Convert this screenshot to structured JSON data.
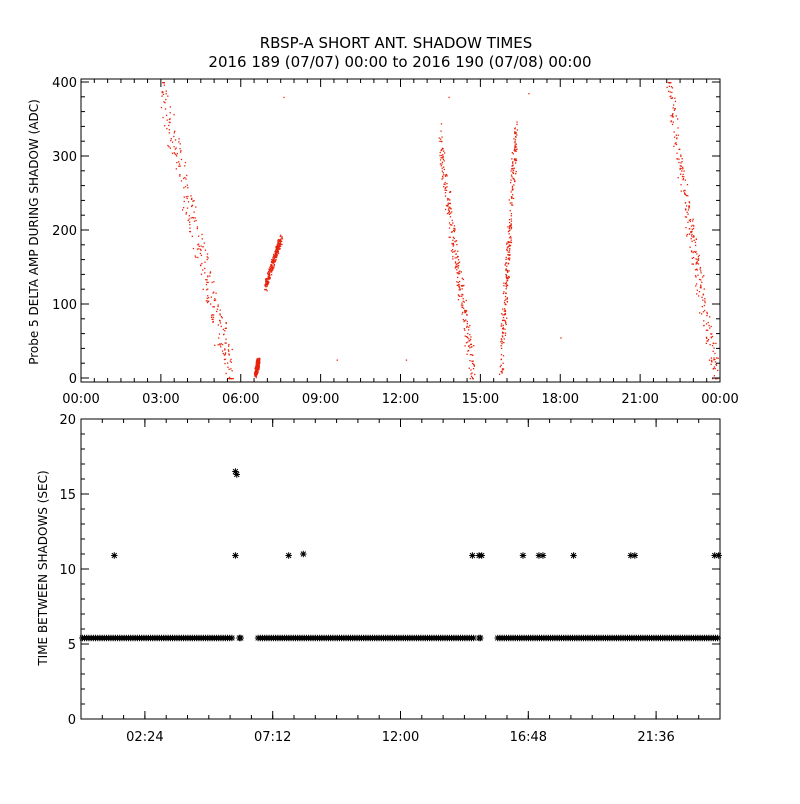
{
  "title": "RBSP-A SHORT ANT. SHADOW TIMES",
  "subtitle": "2016 189 (07/07) 00:00 to 2016 190 (07/08) 00:00",
  "colors": {
    "series_top": "#e8220a",
    "series_bottom": "#000000",
    "axes": "#000000"
  },
  "chart_data": [
    {
      "type": "scatter",
      "ylabel": "Probe 5 DELTA AMP DURING SHADOW (ADC)",
      "xlabel": "",
      "xlim_hours": [
        0,
        24
      ],
      "ylim": [
        0,
        400
      ],
      "x_tick_labels": [
        "00:00",
        "03:00",
        "06:00",
        "09:00",
        "12:00",
        "15:00",
        "18:00",
        "21:00",
        "00:00"
      ],
      "y_tick_labels": [
        "0",
        "100",
        "200",
        "300",
        "400"
      ],
      "grid": false,
      "marker": "dot",
      "clusters": [
        {
          "x_start": 3.0,
          "x_end": 5.7,
          "y_start": 400,
          "y_end": 2
        },
        {
          "x_start": 6.55,
          "x_end": 6.65,
          "y_start": 5,
          "y_end": 25
        },
        {
          "x_start": 6.9,
          "x_end": 7.5,
          "y_start": 120,
          "y_end": 190
        },
        {
          "x_start": 13.45,
          "x_end": 14.75,
          "y_start": 330,
          "y_end": 2
        },
        {
          "x_start": 15.75,
          "x_end": 16.35,
          "y_start": 5,
          "y_end": 340
        },
        {
          "x_start": 22.05,
          "x_end": 23.85,
          "y_start": 400,
          "y_end": 2
        }
      ],
      "isolated_points": [
        {
          "x": 7.6,
          "y": 380
        },
        {
          "x": 9.6,
          "y": 25
        },
        {
          "x": 12.2,
          "y": 25
        },
        {
          "x": 13.8,
          "y": 380
        },
        {
          "x": 16.8,
          "y": 385
        },
        {
          "x": 18.0,
          "y": 55
        },
        {
          "x": 5.0,
          "y": 45
        }
      ]
    },
    {
      "type": "scatter",
      "ylabel": "TIME BETWEEN SHADOWS (SEC)",
      "xlabel": "",
      "xlim_hours": [
        0,
        24
      ],
      "ylim": [
        0,
        20
      ],
      "x_tick_labels": [
        "02:24",
        "07:12",
        "12:00",
        "16:48",
        "21:36"
      ],
      "x_tick_values_hours": [
        2.4,
        7.2,
        12.0,
        16.8,
        21.6
      ],
      "y_tick_labels": [
        "0",
        "5",
        "10",
        "15",
        "20"
      ],
      "grid": false,
      "marker": "asterisk",
      "baseline_y": 5.4,
      "baseline_segments": [
        [
          0.05,
          5.75
        ],
        [
          6.65,
          14.8
        ],
        [
          15.65,
          23.95
        ]
      ],
      "baseline_extra_points": [
        5.95,
        6.0,
        14.95,
        15.0
      ],
      "points": [
        {
          "x": 1.25,
          "y": 10.9
        },
        {
          "x": 5.8,
          "y": 16.5
        },
        {
          "x": 5.85,
          "y": 16.3
        },
        {
          "x": 5.8,
          "y": 10.9
        },
        {
          "x": 7.8,
          "y": 10.9
        },
        {
          "x": 8.35,
          "y": 11.0
        },
        {
          "x": 14.7,
          "y": 10.9
        },
        {
          "x": 14.95,
          "y": 10.9
        },
        {
          "x": 15.05,
          "y": 10.9
        },
        {
          "x": 16.6,
          "y": 10.9
        },
        {
          "x": 17.2,
          "y": 10.9
        },
        {
          "x": 17.35,
          "y": 10.9
        },
        {
          "x": 18.5,
          "y": 10.9
        },
        {
          "x": 20.65,
          "y": 10.9
        },
        {
          "x": 20.8,
          "y": 10.9
        },
        {
          "x": 23.8,
          "y": 10.9
        },
        {
          "x": 23.95,
          "y": 10.9
        }
      ]
    }
  ]
}
